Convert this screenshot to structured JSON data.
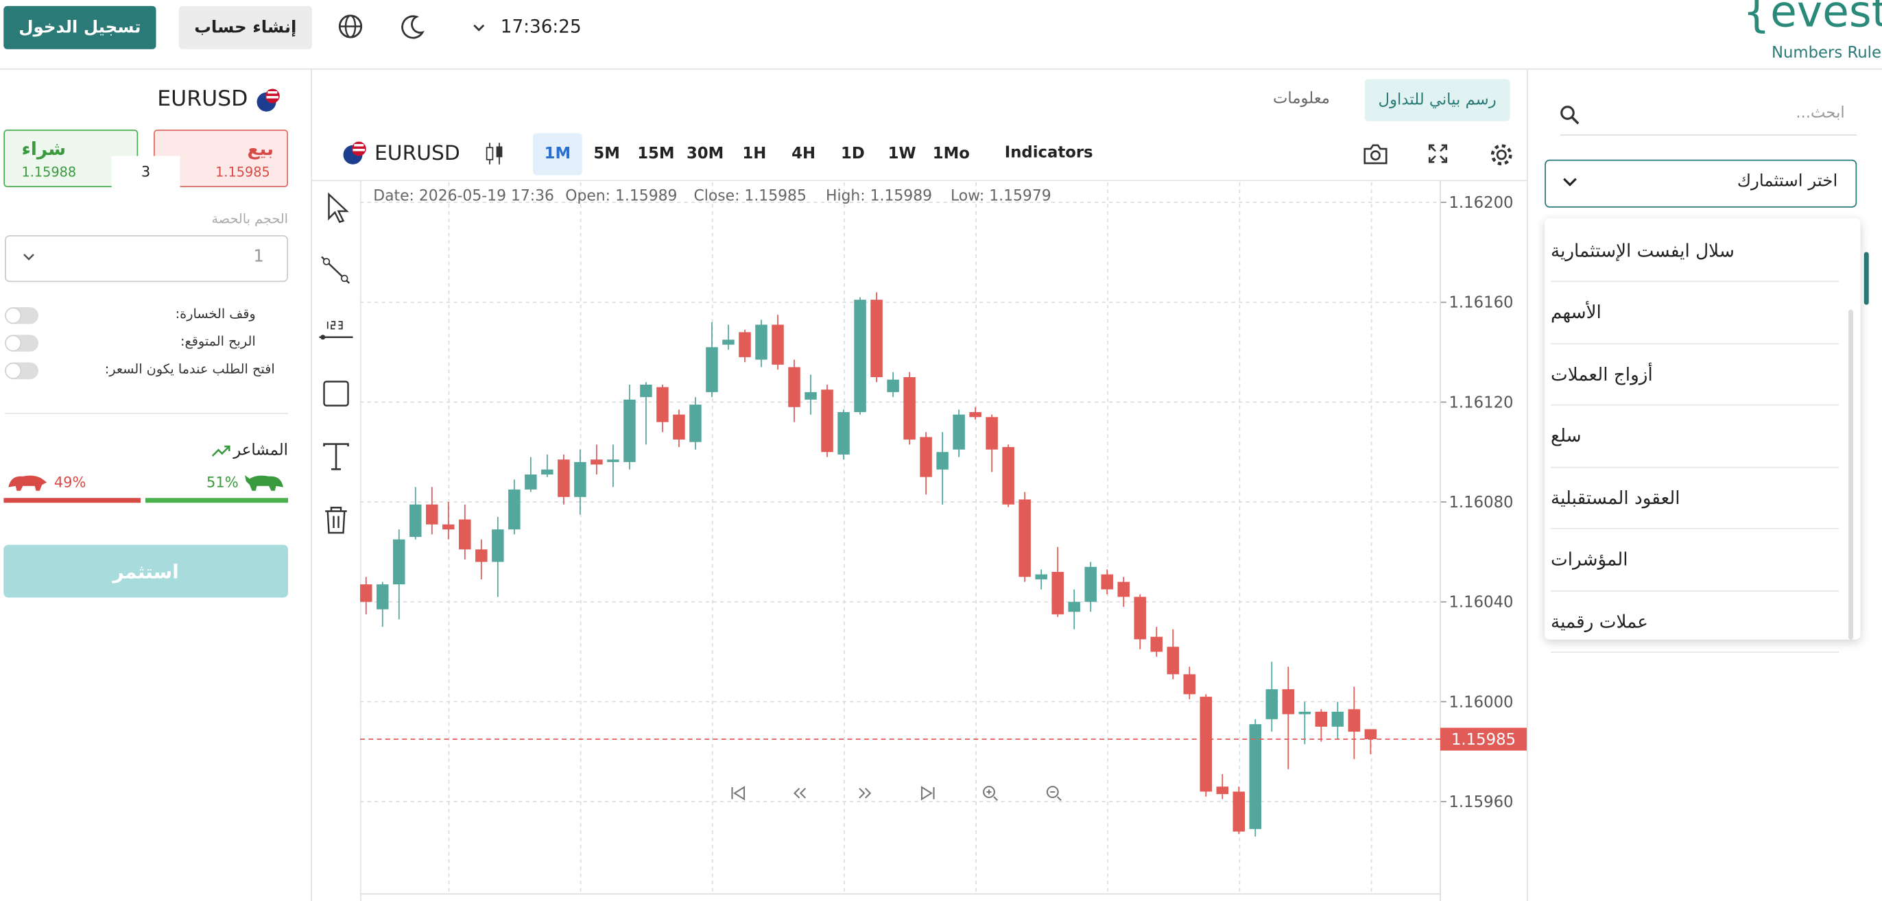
{
  "header": {
    "login": "تسجيل الدخول",
    "register": "إنشاء حساب",
    "time": "17:36:25",
    "logo": "{evest",
    "tagline": "Numbers Rule"
  },
  "trade_panel": {
    "symbol": "EURUSD",
    "sell_label": "بيع",
    "sell_price": "1.15985",
    "buy_label": "شراء",
    "buy_price": "1.15988",
    "spread": "3",
    "volume_label": "الحجم بالحصة",
    "volume_value": "1",
    "stop_loss": "وقف الخسارة:",
    "take_profit": "الربح المتوقع:",
    "open_at": "افتح الطلب عندما يكون السعر:",
    "sentiment_title": "المشاعر",
    "sentiment": {
      "sell": 49,
      "sell_label": "49%",
      "buy": 51,
      "buy_label": "51%"
    },
    "invest": "استثمر"
  },
  "tabs": [
    "رسم بياني للتداول",
    "معلومات"
  ],
  "toolbar": {
    "symbol": "EURUSD",
    "timeframes": [
      "1M",
      "5M",
      "15M",
      "30M",
      "1H",
      "4H",
      "1D",
      "1W",
      "1Mo"
    ],
    "active_timeframe": "1M",
    "indicators": "Indicators"
  },
  "ohlc_header": {
    "date": "Date: 2026-05-19 17:36",
    "open": "Open: 1.15989",
    "close": "Close: 1.15985",
    "high": "High: 1.15989",
    "low": "Low: 1.15979"
  },
  "sidebar": {
    "search_placeholder": "ابحث...",
    "select": "اختر استثمارك",
    "options": [
      "سلال ايفست الإستثمارية",
      "الأسهم",
      "أزواج العملات",
      "سلع",
      "العقود المستقبلية",
      "المؤشرات",
      "عملات رقمية"
    ]
  },
  "chart_data": {
    "type": "candlestick",
    "up_color": "#53a79d",
    "down_color": "#e15b57",
    "ylim": [
      1.15923,
      1.16208
    ],
    "yticks": [
      {
        "value": 1.162,
        "label": "1.16200"
      },
      {
        "value": 1.1616,
        "label": "1.16160"
      },
      {
        "value": 1.1612,
        "label": "1.16120"
      },
      {
        "value": 1.1608,
        "label": "1.16080"
      },
      {
        "value": 1.1604,
        "label": "1.16040"
      },
      {
        "value": 1.16,
        "label": "1.16000"
      },
      {
        "value": 1.1596,
        "label": "1.15960"
      }
    ],
    "grid": true,
    "last_price": {
      "value": 1.15985,
      "label": "1.15985"
    },
    "open": [
      1.16047,
      1.16037,
      1.16047,
      1.16066,
      1.16079,
      1.16071,
      1.16073,
      1.16061,
      1.16056,
      1.16069,
      1.16085,
      1.16091,
      1.16097,
      1.16082,
      1.16097,
      1.16096,
      1.16096,
      1.16122,
      1.16126,
      1.16115,
      1.16104,
      1.16124,
      1.16143,
      1.16148,
      1.16137,
      1.16151,
      1.16134,
      1.16121,
      1.16125,
      1.16099,
      1.16116,
      1.16161,
      1.16124,
      1.1613,
      1.16106,
      1.16093,
      1.16101,
      1.16116,
      1.16114,
      1.16102,
      1.16081,
      1.16049,
      1.16052,
      1.16036,
      1.1604,
      1.16051,
      1.16048,
      1.16042,
      1.16026,
      1.16022,
      1.16011,
      1.16002,
      1.15966,
      1.15964,
      1.15949,
      1.15993,
      1.16005,
      1.15995,
      1.15996,
      1.1599,
      1.15997,
      1.15989
    ],
    "high": [
      1.1605,
      1.16048,
      1.16069,
      1.16086,
      1.16086,
      1.1608,
      1.16079,
      1.16065,
      1.16074,
      1.16089,
      1.16098,
      1.16099,
      1.16099,
      1.16101,
      1.16103,
      1.16103,
      1.16127,
      1.16128,
      1.16127,
      1.16117,
      1.16122,
      1.16152,
      1.16151,
      1.16149,
      1.16153,
      1.16155,
      1.16137,
      1.16131,
      1.16127,
      1.16117,
      1.16162,
      1.16164,
      1.16132,
      1.16132,
      1.16108,
      1.16108,
      1.16117,
      1.16118,
      1.16115,
      1.16103,
      1.16084,
      1.16053,
      1.16062,
      1.16045,
      1.16056,
      1.16053,
      1.1605,
      1.16043,
      1.1603,
      1.16029,
      1.16014,
      1.16003,
      1.15971,
      1.15966,
      1.15993,
      1.16016,
      1.16014,
      1.16,
      1.15997,
      1.16,
      1.16006,
      1.15989
    ],
    "low": [
      1.16035,
      1.1603,
      1.16033,
      1.16065,
      1.16067,
      1.16065,
      1.16057,
      1.16049,
      1.16042,
      1.16067,
      1.16084,
      1.1609,
      1.16079,
      1.16075,
      1.16091,
      1.16086,
      1.16093,
      1.16103,
      1.16108,
      1.16102,
      1.16101,
      1.16122,
      1.16141,
      1.16136,
      1.16134,
      1.16133,
      1.16112,
      1.16115,
      1.16098,
      1.16097,
      1.16115,
      1.16128,
      1.16122,
      1.16103,
      1.16083,
      1.16079,
      1.16098,
      1.16113,
      1.16092,
      1.16078,
      1.16048,
      1.16045,
      1.16034,
      1.16029,
      1.16036,
      1.16043,
      1.16038,
      1.16021,
      1.16018,
      1.16009,
      1.16001,
      1.15962,
      1.15961,
      1.15947,
      1.15946,
      1.15988,
      1.15973,
      1.15983,
      1.15984,
      1.15985,
      1.15977,
      1.15979
    ],
    "close": [
      1.1604,
      1.16047,
      1.16065,
      1.16079,
      1.16071,
      1.16069,
      1.16061,
      1.16056,
      1.16069,
      1.16085,
      1.16091,
      1.16093,
      1.16082,
      1.16096,
      1.16095,
      1.16097,
      1.16121,
      1.16127,
      1.16112,
      1.16105,
      1.16119,
      1.16142,
      1.16145,
      1.16138,
      1.16151,
      1.16135,
      1.16118,
      1.16124,
      1.161,
      1.16116,
      1.16161,
      1.1613,
      1.16129,
      1.16105,
      1.1609,
      1.161,
      1.16115,
      1.16114,
      1.16101,
      1.16079,
      1.1605,
      1.16051,
      1.16035,
      1.1604,
      1.16054,
      1.16045,
      1.16042,
      1.16025,
      1.1602,
      1.16011,
      1.16003,
      1.15964,
      1.15963,
      1.15948,
      1.15991,
      1.16005,
      1.15995,
      1.15996,
      1.1599,
      1.15996,
      1.15988,
      1.15985
    ]
  }
}
